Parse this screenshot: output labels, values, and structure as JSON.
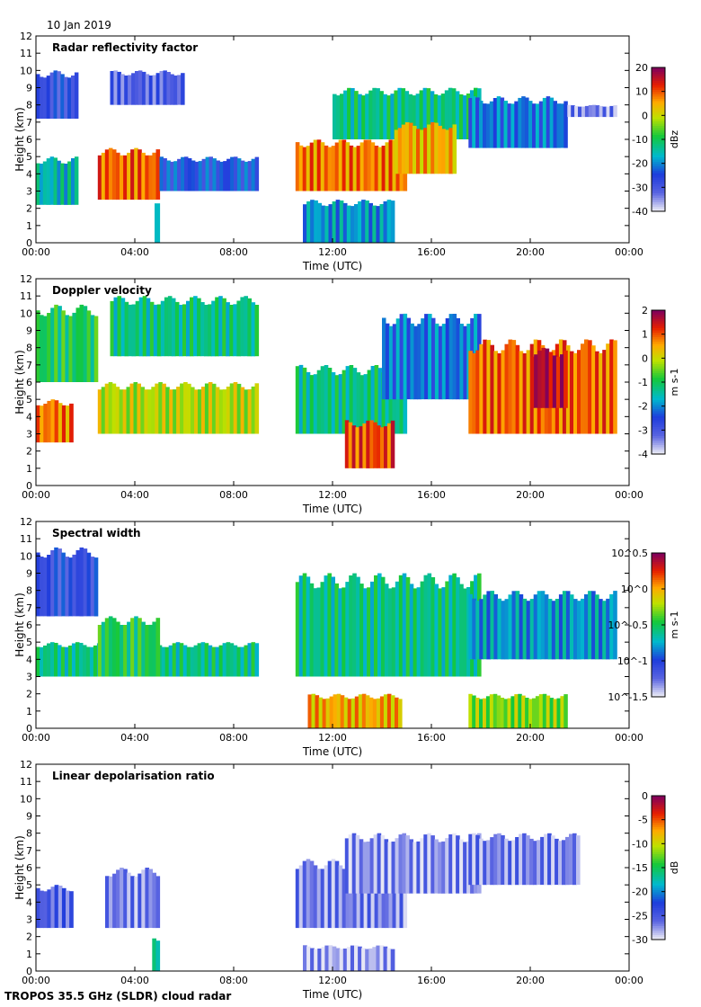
{
  "figure": {
    "date": "10 Jan 2019",
    "footer": "TROPOS 35.5 GHz (SLDR) cloud radar",
    "xlabel": "Time (UTC)",
    "ylabel": "Height (km)"
  },
  "chart_data": [
    {
      "type": "heatmap",
      "title": "Radar reflectivity factor",
      "xlabel": "Time (UTC)",
      "ylabel": "Height (km)",
      "xticks": [
        "00:00",
        "04:00",
        "08:00",
        "12:00",
        "16:00",
        "20:00",
        "00:00"
      ],
      "yticks": [
        "0",
        "1",
        "2",
        "3",
        "4",
        "5",
        "6",
        "7",
        "8",
        "9",
        "10",
        "11",
        "12"
      ],
      "ylim": [
        0,
        12
      ],
      "xlim_hours": [
        0,
        24
      ],
      "colorbar": {
        "unit": "dBz",
        "ticks": [
          "20",
          "10",
          "0",
          "-10",
          "-20",
          "-30",
          "-40"
        ],
        "range": [
          -40,
          20
        ]
      },
      "features": [
        {
          "t0": 0.0,
          "t1": 1.7,
          "h0": 7.2,
          "h1": 10.0,
          "level": 0.2
        },
        {
          "t0": 0.0,
          "t1": 1.7,
          "h0": 2.2,
          "h1": 5.0,
          "level": 0.4
        },
        {
          "t0": 2.5,
          "t1": 5.0,
          "h0": 2.5,
          "h1": 5.5,
          "level": 0.82
        },
        {
          "t0": 4.8,
          "t1": 5.0,
          "h0": 0.0,
          "h1": 2.5,
          "level": 0.3
        },
        {
          "t0": 3.0,
          "t1": 6.0,
          "h0": 8.0,
          "h1": 10.0,
          "level": 0.15
        },
        {
          "t0": 5.0,
          "t1": 9.0,
          "h0": 3.0,
          "h1": 5.0,
          "level": 0.25
        },
        {
          "t0": 10.5,
          "t1": 15.0,
          "h0": 3.0,
          "h1": 6.0,
          "level": 0.8
        },
        {
          "t0": 12.0,
          "t1": 18.0,
          "h0": 6.0,
          "h1": 9.0,
          "level": 0.45
        },
        {
          "t0": 14.5,
          "t1": 17.0,
          "h0": 4.0,
          "h1": 7.0,
          "level": 0.75
        },
        {
          "t0": 10.8,
          "t1": 14.5,
          "h0": 0.0,
          "h1": 2.5,
          "level": 0.35
        },
        {
          "t0": 17.5,
          "t1": 21.5,
          "h0": 5.5,
          "h1": 8.5,
          "level": 0.3
        },
        {
          "t0": 21.5,
          "t1": 23.5,
          "h0": 7.3,
          "h1": 8.0,
          "level": 0.1
        }
      ]
    },
    {
      "type": "heatmap",
      "title": "Doppler velocity",
      "xlabel": "Time (UTC)",
      "ylabel": "Height (km)",
      "xticks": [
        "00:00",
        "04:00",
        "08:00",
        "12:00",
        "16:00",
        "20:00",
        "00:00"
      ],
      "yticks": [
        "0",
        "1",
        "2",
        "3",
        "4",
        "5",
        "6",
        "7",
        "8",
        "9",
        "10",
        "11",
        "12"
      ],
      "ylim": [
        0,
        12
      ],
      "xlim_hours": [
        0,
        24
      ],
      "colorbar": {
        "unit": "m s-1",
        "ticks": [
          "2",
          "1",
          "0",
          "-1",
          "-2",
          "-3",
          "-4"
        ],
        "range": [
          -4,
          2
        ]
      },
      "features": [
        {
          "t0": 0.0,
          "t1": 2.5,
          "h0": 6.0,
          "h1": 10.5,
          "level": 0.5
        },
        {
          "t0": 0.0,
          "t1": 1.5,
          "h0": 2.5,
          "h1": 5.0,
          "level": 0.8
        },
        {
          "t0": 2.5,
          "t1": 9.0,
          "h0": 3.0,
          "h1": 6.0,
          "level": 0.65
        },
        {
          "t0": 3.0,
          "t1": 9.0,
          "h0": 7.5,
          "h1": 11.0,
          "level": 0.45
        },
        {
          "t0": 10.5,
          "t1": 15.0,
          "h0": 3.0,
          "h1": 7.0,
          "level": 0.45
        },
        {
          "t0": 12.5,
          "t1": 14.5,
          "h0": 1.0,
          "h1": 3.8,
          "level": 0.85
        },
        {
          "t0": 14.0,
          "t1": 18.0,
          "h0": 5.0,
          "h1": 10.0,
          "level": 0.3
        },
        {
          "t0": 17.5,
          "t1": 23.5,
          "h0": 3.0,
          "h1": 8.5,
          "level": 0.82
        },
        {
          "t0": 20.0,
          "t1": 21.5,
          "h0": 4.5,
          "h1": 8.0,
          "level": 0.95
        }
      ]
    },
    {
      "type": "heatmap",
      "title": "Spectral width",
      "xlabel": "Time (UTC)",
      "ylabel": "Height (km)",
      "xticks": [
        "00:00",
        "04:00",
        "08:00",
        "12:00",
        "16:00",
        "20:00",
        "00:00"
      ],
      "yticks": [
        "0",
        "1",
        "2",
        "3",
        "4",
        "5",
        "6",
        "7",
        "8",
        "9",
        "10",
        "11",
        "12"
      ],
      "ylim": [
        0,
        12
      ],
      "xlim_hours": [
        0,
        24
      ],
      "colorbar": {
        "unit": "m s-1",
        "ticks": [
          "10^0.5",
          "10^0",
          "10^-0.5",
          "10^-1",
          "10^-1.5"
        ],
        "range": [
          -1.5,
          0.5
        ]
      },
      "features": [
        {
          "t0": 0.0,
          "t1": 2.5,
          "h0": 6.5,
          "h1": 10.5,
          "level": 0.2
        },
        {
          "t0": 0.0,
          "t1": 9.0,
          "h0": 3.0,
          "h1": 5.0,
          "level": 0.45
        },
        {
          "t0": 2.5,
          "t1": 5.0,
          "h0": 3.0,
          "h1": 6.5,
          "level": 0.5
        },
        {
          "t0": 10.5,
          "t1": 18.0,
          "h0": 3.0,
          "h1": 9.0,
          "level": 0.45
        },
        {
          "t0": 11.0,
          "t1": 14.8,
          "h0": 0.0,
          "h1": 2.0,
          "level": 0.75
        },
        {
          "t0": 17.5,
          "t1": 21.5,
          "h0": 0.0,
          "h1": 2.0,
          "level": 0.6
        },
        {
          "t0": 17.5,
          "t1": 23.5,
          "h0": 4.0,
          "h1": 8.0,
          "level": 0.35
        }
      ]
    },
    {
      "type": "heatmap",
      "title": "Linear depolarisation ratio",
      "xlabel": "Time (UTC)",
      "ylabel": "Height (km)",
      "xticks": [
        "00:00",
        "04:00",
        "08:00",
        "12:00",
        "16:00",
        "20:00",
        "00:00"
      ],
      "yticks": [
        "0",
        "1",
        "2",
        "3",
        "4",
        "5",
        "6",
        "7",
        "8",
        "9",
        "10",
        "11",
        "12"
      ],
      "ylim": [
        0,
        12
      ],
      "xlim_hours": [
        0,
        24
      ],
      "colorbar": {
        "unit": "dB",
        "ticks": [
          "0",
          "-5",
          "-10",
          "-15",
          "-20",
          "-25",
          "-30"
        ],
        "range": [
          -30,
          0
        ]
      },
      "features": [
        {
          "t0": 0.0,
          "t1": 1.5,
          "h0": 2.5,
          "h1": 5.0,
          "level": 0.15
        },
        {
          "t0": 2.8,
          "t1": 5.0,
          "h0": 2.5,
          "h1": 6.0,
          "level": 0.1
        },
        {
          "t0": 10.5,
          "t1": 15.0,
          "h0": 2.5,
          "h1": 6.5,
          "level": 0.1
        },
        {
          "t0": 12.5,
          "t1": 18.0,
          "h0": 4.5,
          "h1": 8.0,
          "level": 0.08
        },
        {
          "t0": 17.5,
          "t1": 22.0,
          "h0": 5.0,
          "h1": 8.0,
          "level": 0.1
        },
        {
          "t0": 10.8,
          "t1": 14.5,
          "h0": 0.0,
          "h1": 1.5,
          "level": 0.05
        },
        {
          "t0": 4.7,
          "t1": 5.0,
          "h0": 0.0,
          "h1": 2.0,
          "level": 0.45
        }
      ]
    }
  ]
}
